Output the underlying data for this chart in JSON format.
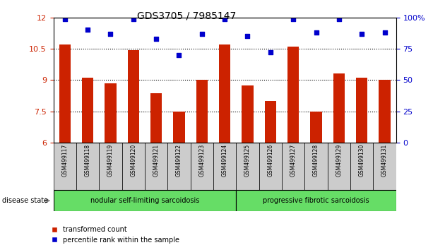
{
  "title": "GDS3705 / 7985147",
  "samples": [
    "GSM499117",
    "GSM499118",
    "GSM499119",
    "GSM499120",
    "GSM499121",
    "GSM499122",
    "GSM499123",
    "GSM499124",
    "GSM499125",
    "GSM499126",
    "GSM499127",
    "GSM499128",
    "GSM499129",
    "GSM499130",
    "GSM499131"
  ],
  "transformed_count": [
    10.7,
    9.1,
    8.85,
    10.45,
    8.35,
    7.5,
    9.0,
    10.7,
    8.75,
    8.0,
    10.6,
    7.5,
    9.3,
    9.1,
    9.0
  ],
  "percentile_rank": [
    99,
    90,
    87,
    99,
    83,
    70,
    87,
    99,
    85,
    72,
    99,
    88,
    99,
    87,
    88
  ],
  "ylim_left": [
    6,
    12
  ],
  "ylim_right": [
    0,
    100
  ],
  "yticks_left": [
    6,
    7.5,
    9,
    10.5,
    12
  ],
  "yticks_right": [
    0,
    25,
    50,
    75,
    100
  ],
  "bar_color": "#cc2200",
  "dot_color": "#0000cc",
  "group1_label": "nodular self-limiting sarcoidosis",
  "group2_label": "progressive fibrotic sarcoidosis",
  "group1_count": 8,
  "group2_count": 7,
  "group_bg_color": "#66dd66",
  "sample_bg_color": "#cccccc",
  "legend_bar_label": "transformed count",
  "legend_dot_label": "percentile rank within the sample",
  "disease_state_label": "disease state",
  "right_ytick_color": "#0000cc",
  "left_ytick_color": "#cc2200",
  "dotted_lines": [
    7.5,
    9.0,
    10.5
  ],
  "bar_width": 0.5
}
